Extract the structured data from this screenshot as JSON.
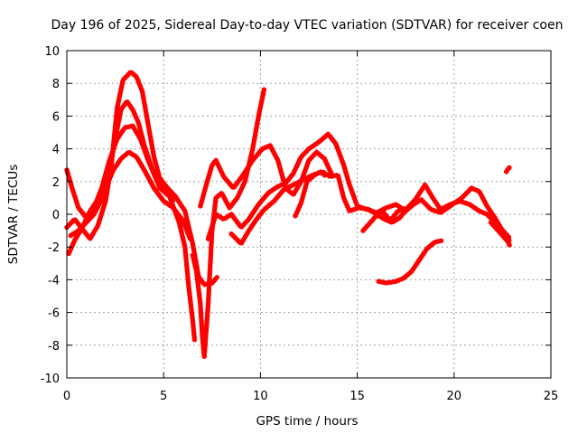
{
  "chart_data": {
    "type": "scatter",
    "title": "Day 196 of 2025, Sidereal Day-to-day VTEC variation (SDTVAR) for receiver coen",
    "xlabel": "GPS time / hours",
    "ylabel": "SDTVAR / TECUs",
    "xlim": [
      0,
      25
    ],
    "ylim": [
      -10,
      10
    ],
    "xticks": [
      0,
      5,
      10,
      15,
      20,
      25
    ],
    "yticks": [
      -10,
      -8,
      -6,
      -4,
      -2,
      0,
      2,
      4,
      6,
      8,
      10
    ],
    "grid": true,
    "legend": "none",
    "marker": "+",
    "series_color": "#ff0000",
    "series": [
      {
        "name": "track-1",
        "points": [
          [
            0,
            -0.8
          ],
          [
            0.4,
            -0.3
          ],
          [
            0.8,
            -0.9
          ],
          [
            1.2,
            -1.5
          ],
          [
            1.6,
            -0.7
          ],
          [
            2,
            0.8
          ],
          [
            2.3,
            3.0
          ],
          [
            2.6,
            6.5
          ],
          [
            2.9,
            8.2
          ],
          [
            3.3,
            8.7
          ],
          [
            3.6,
            8.4
          ],
          [
            3.9,
            7.5
          ],
          [
            4.2,
            5.5
          ],
          [
            4.5,
            3.5
          ],
          [
            4.8,
            2.2
          ],
          [
            5.2,
            1.6
          ],
          [
            5.6,
            1.1
          ],
          [
            6.1,
            0.2
          ],
          [
            6.5,
            -1.8
          ],
          [
            6.8,
            -3.8
          ],
          [
            7.1,
            -4.3
          ],
          [
            7.5,
            -4.2
          ],
          [
            7.8,
            -3.8
          ]
        ]
      },
      {
        "name": "track-2",
        "points": [
          [
            0.2,
            -1.3
          ],
          [
            0.6,
            -1.0
          ],
          [
            1,
            -0.5
          ],
          [
            1.4,
            0.0
          ],
          [
            1.8,
            0.9
          ],
          [
            2.2,
            2.6
          ],
          [
            2.5,
            4.6
          ],
          [
            2.8,
            6.4
          ],
          [
            3.1,
            6.9
          ],
          [
            3.4,
            6.4
          ],
          [
            3.7,
            5.6
          ],
          [
            4,
            4.2
          ],
          [
            4.4,
            2.8
          ],
          [
            4.8,
            1.6
          ],
          [
            5.3,
            1.1
          ],
          [
            5.8,
            -0.5
          ],
          [
            6.1,
            -2.0
          ],
          [
            6.3,
            -4.5
          ],
          [
            6.5,
            -6.5
          ],
          [
            6.6,
            -7.7
          ]
        ]
      },
      {
        "name": "track-3",
        "points": [
          [
            0,
            2.7
          ],
          [
            0.3,
            1.5
          ],
          [
            0.6,
            0.4
          ],
          [
            1,
            -0.2
          ],
          [
            1.4,
            0.4
          ],
          [
            1.8,
            1.6
          ],
          [
            2.2,
            3.3
          ],
          [
            2.6,
            4.6
          ],
          [
            3,
            5.3
          ],
          [
            3.4,
            5.4
          ],
          [
            3.8,
            4.6
          ],
          [
            4.2,
            3.3
          ],
          [
            4.6,
            2.2
          ],
          [
            5,
            1.6
          ],
          [
            5.5,
            0.8
          ]
        ]
      },
      {
        "name": "track-4",
        "points": [
          [
            0.1,
            -2.4
          ],
          [
            0.4,
            -1.6
          ],
          [
            0.8,
            -0.8
          ],
          [
            1.2,
            0.2
          ],
          [
            1.6,
            0.9
          ],
          [
            2,
            1.6
          ],
          [
            2.4,
            2.7
          ],
          [
            2.8,
            3.4
          ],
          [
            3.2,
            3.8
          ],
          [
            3.6,
            3.5
          ],
          [
            4,
            2.7
          ],
          [
            4.5,
            1.6
          ],
          [
            5,
            0.8
          ],
          [
            5.5,
            0.4
          ],
          [
            6,
            -0.4
          ],
          [
            6.4,
            -1.6
          ]
        ]
      },
      {
        "name": "track-5",
        "points": [
          [
            6.5,
            -2.5
          ],
          [
            6.7,
            -3.5
          ],
          [
            6.9,
            -5.5
          ],
          [
            7.0,
            -7.5
          ],
          [
            7.1,
            -8.7
          ],
          [
            7.3,
            -5.5
          ],
          [
            7.5,
            -1.0
          ],
          [
            7.7,
            1.0
          ],
          [
            8,
            1.3
          ],
          [
            8.4,
            0.4
          ],
          [
            8.8,
            1.0
          ],
          [
            9.2,
            2.0
          ],
          [
            9.6,
            4.0
          ],
          [
            9.9,
            6.0
          ],
          [
            10.2,
            7.7
          ]
        ]
      },
      {
        "name": "track-6",
        "points": [
          [
            6.9,
            0.5
          ],
          [
            7.2,
            1.8
          ],
          [
            7.5,
            3.0
          ],
          [
            7.7,
            3.3
          ],
          [
            8.1,
            2.3
          ],
          [
            8.6,
            1.6
          ],
          [
            9.1,
            2.4
          ],
          [
            9.6,
            3.3
          ],
          [
            10.1,
            4.0
          ],
          [
            10.5,
            4.2
          ],
          [
            10.9,
            3.3
          ],
          [
            11.3,
            1.6
          ],
          [
            11.7,
            1.2
          ],
          [
            12.1,
            2.0
          ],
          [
            12.5,
            3.3
          ],
          [
            12.9,
            3.8
          ],
          [
            13.3,
            3.4
          ],
          [
            13.7,
            2.4
          ]
        ]
      },
      {
        "name": "track-7",
        "points": [
          [
            7.3,
            -1.5
          ],
          [
            7.7,
            0.0
          ],
          [
            8.1,
            -0.3
          ],
          [
            8.5,
            0.0
          ],
          [
            9,
            -0.8
          ],
          [
            9.4,
            -0.3
          ],
          [
            9.9,
            0.6
          ],
          [
            10.4,
            1.3
          ],
          [
            10.9,
            1.7
          ],
          [
            11.3,
            1.9
          ],
          [
            11.7,
            2.5
          ],
          [
            12.1,
            3.5
          ],
          [
            12.5,
            4.0
          ],
          [
            13,
            4.4
          ],
          [
            13.5,
            4.9
          ],
          [
            13.9,
            4.3
          ],
          [
            14.3,
            3.0
          ],
          [
            14.6,
            1.8
          ],
          [
            15,
            0.5
          ],
          [
            15.5,
            0.3
          ],
          [
            16,
            0.1
          ],
          [
            16.5,
            0.4
          ],
          [
            17,
            0.6
          ],
          [
            17.5,
            0.2
          ],
          [
            17.9,
            0.6
          ],
          [
            18.3,
            0.9
          ],
          [
            18.8,
            0.3
          ],
          [
            19.3,
            0.1
          ],
          [
            19.8,
            0.5
          ],
          [
            20.4,
            1.0
          ],
          [
            20.9,
            1.6
          ],
          [
            21.3,
            1.4
          ],
          [
            21.7,
            0.5
          ],
          [
            22.1,
            -0.2
          ],
          [
            22.5,
            -1.0
          ],
          [
            22.9,
            -1.7
          ]
        ]
      },
      {
        "name": "track-8",
        "points": [
          [
            8.5,
            -1.2
          ],
          [
            9,
            -1.8
          ],
          [
            9.4,
            -1.0
          ],
          [
            9.8,
            -0.3
          ],
          [
            10.2,
            0.3
          ],
          [
            10.7,
            0.8
          ],
          [
            11.2,
            1.5
          ],
          [
            11.7,
            1.8
          ],
          [
            12.2,
            2.1
          ],
          [
            12.7,
            2.4
          ],
          [
            13.2,
            2.6
          ],
          [
            13.6,
            2.3
          ],
          [
            14,
            2.4
          ],
          [
            14.3,
            1.0
          ],
          [
            14.6,
            0.2
          ],
          [
            15.1,
            0.4
          ],
          [
            15.6,
            0.3
          ],
          [
            16,
            0.0
          ],
          [
            16.4,
            -0.3
          ],
          [
            16.8,
            -0.5
          ],
          [
            17.2,
            -0.2
          ],
          [
            17.6,
            0.4
          ],
          [
            18,
            0.9
          ],
          [
            18.5,
            1.8
          ],
          [
            18.9,
            1.0
          ],
          [
            19.3,
            0.3
          ],
          [
            19.8,
            0.6
          ],
          [
            20.3,
            0.8
          ],
          [
            20.8,
            0.6
          ],
          [
            21.3,
            0.2
          ],
          [
            21.7,
            0.0
          ],
          [
            22.2,
            -0.6
          ],
          [
            22.6,
            -1.1
          ],
          [
            22.9,
            -1.5
          ]
        ]
      },
      {
        "name": "track-9",
        "points": [
          [
            11.8,
            -0.1
          ],
          [
            12.1,
            0.7
          ],
          [
            12.4,
            2.0
          ],
          [
            12.8,
            2.4
          ],
          [
            13.1,
            2.6
          ],
          [
            13.4,
            2.3
          ]
        ]
      },
      {
        "name": "track-10",
        "points": [
          [
            15.3,
            -1.0
          ],
          [
            15.6,
            -0.6
          ],
          [
            15.9,
            -0.2
          ],
          [
            16.3,
            0.2
          ],
          [
            16.7,
            -0.4
          ],
          [
            17.1,
            0.2
          ],
          [
            17.5,
            0.4
          ]
        ]
      },
      {
        "name": "track-11",
        "points": [
          [
            16.1,
            -4.1
          ],
          [
            16.5,
            -4.2
          ],
          [
            17,
            -4.1
          ],
          [
            17.4,
            -3.9
          ],
          [
            17.8,
            -3.5
          ],
          [
            18.2,
            -2.8
          ],
          [
            18.6,
            -2.1
          ],
          [
            19,
            -1.7
          ],
          [
            19.4,
            -1.6
          ]
        ]
      },
      {
        "name": "track-12",
        "points": [
          [
            21.9,
            -0.5
          ],
          [
            22.2,
            -0.9
          ],
          [
            22.5,
            -1.3
          ],
          [
            22.8,
            -1.7
          ],
          [
            22.9,
            -2.0
          ]
        ]
      },
      {
        "name": "track-13",
        "points": [
          [
            22.7,
            2.6
          ],
          [
            22.8,
            2.8
          ],
          [
            22.9,
            2.9
          ]
        ]
      }
    ]
  }
}
